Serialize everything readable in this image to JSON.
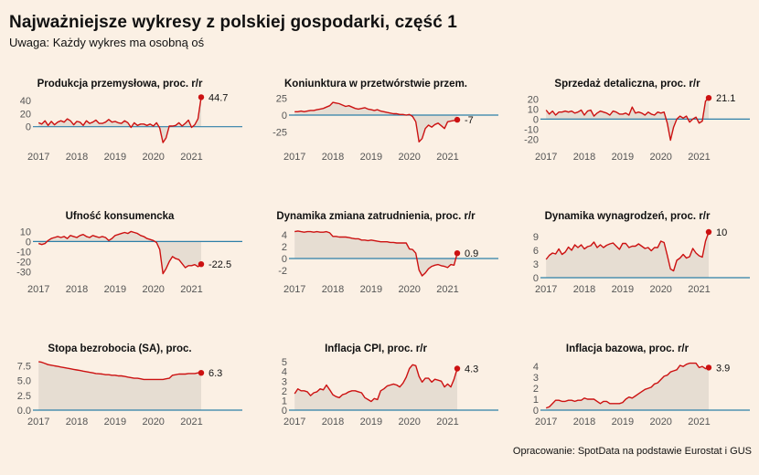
{
  "header": {
    "title": "Najważniejsze wykresy z polskiej gospodarki, część 1",
    "subtitle": "Uwaga: Każdy wykres ma osobną oś"
  },
  "footer": {
    "source": "Opracowanie: SpotData na podstawie Eurostat i GUS"
  },
  "colors": {
    "background": "#fbf0e4",
    "line": "#cc1111",
    "area": "#e6ddd2",
    "zero_line": "#2e7fa8"
  },
  "chart_data": [
    {
      "type": "area",
      "title": "Produkcja przemysłowa, proc. r/r",
      "xlabel": "",
      "ylabel": "",
      "xlim": [
        2016.9,
        2021.25
      ],
      "ylim": [
        -28,
        48
      ],
      "yticks": [
        0,
        20,
        40
      ],
      "ytick_labels": [
        "0",
        "20",
        "40"
      ],
      "xticks": [
        2017,
        2018,
        2019,
        2020,
        2021
      ],
      "grid": false,
      "end_label": "44.7",
      "x": [
        2017.0,
        2017.083,
        2017.167,
        2017.25,
        2017.333,
        2017.417,
        2017.5,
        2017.583,
        2017.667,
        2017.75,
        2017.833,
        2017.917,
        2018.0,
        2018.083,
        2018.167,
        2018.25,
        2018.333,
        2018.417,
        2018.5,
        2018.583,
        2018.667,
        2018.75,
        2018.833,
        2018.917,
        2019.0,
        2019.083,
        2019.167,
        2019.25,
        2019.333,
        2019.417,
        2019.5,
        2019.583,
        2019.667,
        2019.75,
        2019.833,
        2019.917,
        2020.0,
        2020.083,
        2020.167,
        2020.25,
        2020.333,
        2020.417,
        2020.5,
        2020.583,
        2020.667,
        2020.75,
        2020.833,
        2020.917,
        2021.0,
        2021.083,
        2021.167,
        2021.25
      ],
      "values": [
        6,
        4,
        9,
        2,
        8,
        3,
        7,
        9,
        7,
        12,
        9,
        3,
        8,
        7,
        2,
        9,
        5,
        7,
        10,
        5,
        5,
        7,
        11,
        7,
        8,
        6,
        5,
        9,
        6,
        -1,
        6,
        2,
        4,
        4,
        2,
        4,
        1,
        6,
        -2,
        -24,
        -17,
        1,
        1,
        2,
        6,
        1,
        5,
        10,
        -1,
        3,
        12,
        44.7
      ]
    },
    {
      "type": "area",
      "title": "Koniunktura w przetwórstwie przem.",
      "xlabel": "",
      "ylabel": "",
      "xlim": [
        2016.9,
        2021.25
      ],
      "ylim": [
        -45,
        30
      ],
      "yticks": [
        -25,
        0,
        25
      ],
      "ytick_labels": [
        "-25",
        "0",
        "25"
      ],
      "xticks": [
        2017,
        2018,
        2019,
        2020,
        2021
      ],
      "grid": false,
      "end_label": "-7",
      "x": [
        2017.0,
        2017.083,
        2017.167,
        2017.25,
        2017.333,
        2017.417,
        2017.5,
        2017.583,
        2017.667,
        2017.75,
        2017.833,
        2017.917,
        2018.0,
        2018.083,
        2018.167,
        2018.25,
        2018.333,
        2018.417,
        2018.5,
        2018.583,
        2018.667,
        2018.75,
        2018.833,
        2018.917,
        2019.0,
        2019.083,
        2019.167,
        2019.25,
        2019.333,
        2019.417,
        2019.5,
        2019.583,
        2019.667,
        2019.75,
        2019.833,
        2019.917,
        2020.0,
        2020.083,
        2020.167,
        2020.25,
        2020.333,
        2020.417,
        2020.5,
        2020.583,
        2020.667,
        2020.75,
        2020.833,
        2020.917,
        2021.0,
        2021.083,
        2021.167,
        2021.25
      ],
      "values": [
        5,
        5,
        6,
        5,
        6,
        7,
        7,
        8,
        9,
        10,
        12,
        14,
        19,
        18,
        17,
        15,
        13,
        14,
        12,
        10,
        9,
        10,
        11,
        9,
        8,
        7,
        8,
        6,
        5,
        4,
        3,
        2,
        2,
        1,
        1,
        0,
        1,
        -2,
        -10,
        -40,
        -35,
        -20,
        -15,
        -18,
        -14,
        -12,
        -16,
        -20,
        -10,
        -9,
        -8,
        -7
      ]
    },
    {
      "type": "area",
      "title": "Sprzedaż detaliczna, proc. r/r",
      "xlabel": "",
      "ylabel": "",
      "xlim": [
        2016.9,
        2021.25
      ],
      "ylim": [
        -26,
        24
      ],
      "yticks": [
        -20,
        -10,
        0,
        10,
        20
      ],
      "ytick_labels": [
        "-20",
        "-10",
        "0",
        "10",
        "20"
      ],
      "xticks": [
        2017,
        2018,
        2019,
        2020,
        2021
      ],
      "grid": false,
      "end_label": "21.1",
      "x": [
        2017.0,
        2017.083,
        2017.167,
        2017.25,
        2017.333,
        2017.417,
        2017.5,
        2017.583,
        2017.667,
        2017.75,
        2017.833,
        2017.917,
        2018.0,
        2018.083,
        2018.167,
        2018.25,
        2018.333,
        2018.417,
        2018.5,
        2018.583,
        2018.667,
        2018.75,
        2018.833,
        2018.917,
        2019.0,
        2019.083,
        2019.167,
        2019.25,
        2019.333,
        2019.417,
        2019.5,
        2019.583,
        2019.667,
        2019.75,
        2019.833,
        2019.917,
        2020.0,
        2020.083,
        2020.167,
        2020.25,
        2020.333,
        2020.417,
        2020.5,
        2020.583,
        2020.667,
        2020.75,
        2020.833,
        2020.917,
        2021.0,
        2021.083,
        2021.167,
        2021.25
      ],
      "values": [
        9,
        5,
        8,
        4,
        7,
        7,
        8,
        7,
        8,
        6,
        7,
        9,
        4,
        8,
        9,
        3,
        6,
        8,
        7,
        6,
        4,
        8,
        7,
        5,
        5,
        6,
        4,
        12,
        6,
        7,
        6,
        4,
        7,
        5,
        4,
        7,
        6,
        7,
        -4,
        -21,
        -8,
        0,
        3,
        1,
        3,
        -3,
        0,
        2,
        -4,
        -2,
        18,
        21.1
      ]
    },
    {
      "type": "area",
      "title": "Ufność konsumencka",
      "xlabel": "",
      "ylabel": "",
      "xlim": [
        2016.9,
        2021.25
      ],
      "ylim": [
        -36,
        14
      ],
      "yticks": [
        -30,
        -20,
        -10,
        0,
        10
      ],
      "ytick_labels": [
        "-30",
        "-20",
        "-10",
        "0",
        "10"
      ],
      "xticks": [
        2017,
        2018,
        2019,
        2020,
        2021
      ],
      "grid": false,
      "end_label": "-22.5",
      "x": [
        2017.0,
        2017.083,
        2017.167,
        2017.25,
        2017.333,
        2017.417,
        2017.5,
        2017.583,
        2017.667,
        2017.75,
        2017.833,
        2017.917,
        2018.0,
        2018.083,
        2018.167,
        2018.25,
        2018.333,
        2018.417,
        2018.5,
        2018.583,
        2018.667,
        2018.75,
        2018.833,
        2018.917,
        2019.0,
        2019.083,
        2019.167,
        2019.25,
        2019.333,
        2019.417,
        2019.5,
        2019.583,
        2019.667,
        2019.75,
        2019.833,
        2019.917,
        2020.0,
        2020.083,
        2020.167,
        2020.25,
        2020.333,
        2020.417,
        2020.5,
        2020.583,
        2020.667,
        2020.75,
        2020.833,
        2020.917,
        2021.0,
        2021.083,
        2021.167,
        2021.25
      ],
      "values": [
        -2,
        -3,
        -2,
        1,
        3,
        4,
        5,
        4,
        5,
        3,
        6,
        5,
        4,
        6,
        7,
        5,
        4,
        6,
        5,
        4,
        5,
        4,
        1,
        3,
        6,
        7,
        8,
        9,
        8,
        10,
        9,
        8,
        6,
        5,
        3,
        2,
        1,
        -1,
        -8,
        -32,
        -27,
        -20,
        -15,
        -17,
        -18,
        -22,
        -26,
        -24,
        -24,
        -23,
        -25,
        -22.5
      ]
    },
    {
      "type": "area",
      "title": "Dynamika zmiana zatrudnienia, proc. r/r",
      "xlabel": "",
      "ylabel": "",
      "xlim": [
        2016.9,
        2021.25
      ],
      "ylim": [
        -3.2,
        5.2
      ],
      "yticks": [
        -2,
        0,
        2,
        4
      ],
      "ytick_labels": [
        "-2",
        "0",
        "2",
        "4"
      ],
      "xticks": [
        2017,
        2018,
        2019,
        2020,
        2021
      ],
      "grid": false,
      "end_label": "0.9",
      "x": [
        2017.0,
        2017.083,
        2017.167,
        2017.25,
        2017.333,
        2017.417,
        2017.5,
        2017.583,
        2017.667,
        2017.75,
        2017.833,
        2017.917,
        2018.0,
        2018.083,
        2018.167,
        2018.25,
        2018.333,
        2018.417,
        2018.5,
        2018.583,
        2018.667,
        2018.75,
        2018.833,
        2018.917,
        2019.0,
        2019.083,
        2019.167,
        2019.25,
        2019.333,
        2019.417,
        2019.5,
        2019.583,
        2019.667,
        2019.75,
        2019.833,
        2019.917,
        2020.0,
        2020.083,
        2020.167,
        2020.25,
        2020.333,
        2020.417,
        2020.5,
        2020.583,
        2020.667,
        2020.75,
        2020.833,
        2020.917,
        2021.0,
        2021.083,
        2021.167,
        2021.25
      ],
      "values": [
        4.5,
        4.6,
        4.5,
        4.4,
        4.5,
        4.5,
        4.4,
        4.5,
        4.4,
        4.4,
        4.5,
        4.3,
        3.7,
        3.7,
        3.6,
        3.6,
        3.6,
        3.5,
        3.4,
        3.3,
        3.3,
        3.1,
        3.1,
        3.0,
        3.1,
        3.0,
        2.9,
        2.8,
        2.8,
        2.8,
        2.7,
        2.7,
        2.6,
        2.6,
        2.6,
        2.6,
        1.6,
        1.5,
        0.9,
        -1.9,
        -2.9,
        -2.4,
        -1.7,
        -1.3,
        -1.1,
        -1.0,
        -1.2,
        -1.3,
        -1.5,
        -1.0,
        -1.1,
        0.9
      ]
    },
    {
      "type": "area",
      "title": "Dynamika wynagrodzeń, proc. r/r",
      "xlabel": "",
      "ylabel": "",
      "xlim": [
        2016.9,
        2021.25
      ],
      "ylim": [
        0,
        11
      ],
      "yticks": [
        0,
        3,
        6,
        9
      ],
      "ytick_labels": [
        "0",
        "3",
        "6",
        "9"
      ],
      "xticks": [
        2017,
        2018,
        2019,
        2020,
        2021
      ],
      "grid": false,
      "end_label": "10",
      "x": [
        2017.0,
        2017.083,
        2017.167,
        2017.25,
        2017.333,
        2017.417,
        2017.5,
        2017.583,
        2017.667,
        2017.75,
        2017.833,
        2017.917,
        2018.0,
        2018.083,
        2018.167,
        2018.25,
        2018.333,
        2018.417,
        2018.5,
        2018.583,
        2018.667,
        2018.75,
        2018.833,
        2018.917,
        2019.0,
        2019.083,
        2019.167,
        2019.25,
        2019.333,
        2019.417,
        2019.5,
        2019.583,
        2019.667,
        2019.75,
        2019.833,
        2019.917,
        2020.0,
        2020.083,
        2020.167,
        2020.25,
        2020.333,
        2020.417,
        2020.5,
        2020.583,
        2020.667,
        2020.75,
        2020.833,
        2020.917,
        2021.0,
        2021.083,
        2021.167,
        2021.25
      ],
      "values": [
        4.0,
        4.9,
        5.4,
        5.2,
        6.3,
        5.1,
        5.6,
        6.7,
        6.0,
        7.2,
        6.6,
        7.2,
        6.3,
        6.8,
        7.0,
        7.8,
        6.6,
        7.2,
        6.6,
        7.1,
        7.4,
        7.6,
        6.9,
        6.2,
        7.5,
        7.5,
        6.6,
        6.9,
        6.9,
        7.4,
        6.9,
        6.4,
        6.6,
        5.9,
        6.6,
        6.6,
        8.0,
        7.7,
        4.9,
        1.9,
        1.5,
        3.8,
        4.3,
        5.1,
        4.3,
        4.6,
        6.4,
        5.4,
        4.8,
        4.5,
        8.0,
        10.0
      ]
    },
    {
      "type": "area",
      "title": "Stopa bezrobocia (SA), proc.",
      "xlabel": "",
      "ylabel": "",
      "xlim": [
        2016.9,
        2021.25
      ],
      "ylim": [
        0,
        8.5
      ],
      "yticks": [
        0,
        2.5,
        5,
        7.5
      ],
      "ytick_labels": [
        "0.0",
        "2.5",
        "5.0",
        "7.5"
      ],
      "xticks": [
        2017,
        2018,
        2019,
        2020,
        2021
      ],
      "grid": false,
      "end_label": "6.3",
      "x": [
        2017.0,
        2017.083,
        2017.167,
        2017.25,
        2017.333,
        2017.417,
        2017.5,
        2017.583,
        2017.667,
        2017.75,
        2017.833,
        2017.917,
        2018.0,
        2018.083,
        2018.167,
        2018.25,
        2018.333,
        2018.417,
        2018.5,
        2018.583,
        2018.667,
        2018.75,
        2018.833,
        2018.917,
        2019.0,
        2019.083,
        2019.167,
        2019.25,
        2019.333,
        2019.417,
        2019.5,
        2019.583,
        2019.667,
        2019.75,
        2019.833,
        2019.917,
        2020.0,
        2020.083,
        2020.167,
        2020.25,
        2020.333,
        2020.417,
        2020.5,
        2020.583,
        2020.667,
        2020.75,
        2020.833,
        2020.917,
        2021.0,
        2021.083,
        2021.167,
        2021.25
      ],
      "values": [
        8.2,
        8.1,
        7.9,
        7.7,
        7.6,
        7.5,
        7.4,
        7.3,
        7.2,
        7.1,
        7.0,
        6.9,
        6.8,
        6.7,
        6.6,
        6.5,
        6.4,
        6.3,
        6.2,
        6.15,
        6.1,
        6.0,
        6.0,
        5.9,
        5.9,
        5.8,
        5.8,
        5.7,
        5.6,
        5.5,
        5.4,
        5.4,
        5.3,
        5.2,
        5.2,
        5.2,
        5.2,
        5.2,
        5.2,
        5.2,
        5.3,
        5.4,
        5.9,
        6.0,
        6.1,
        6.1,
        6.1,
        6.2,
        6.2,
        6.2,
        6.3,
        6.3
      ]
    },
    {
      "type": "area",
      "title": "Inflacja CPI, proc. r/r",
      "xlabel": "",
      "ylabel": "",
      "xlim": [
        2016.9,
        2021.25
      ],
      "ylim": [
        0,
        5.2
      ],
      "yticks": [
        0,
        1,
        2,
        3,
        4,
        5
      ],
      "ytick_labels": [
        "0",
        "1",
        "2",
        "3",
        "4",
        "5"
      ],
      "xticks": [
        2017,
        2018,
        2019,
        2020,
        2021
      ],
      "grid": false,
      "end_label": "4.3",
      "x": [
        2017.0,
        2017.083,
        2017.167,
        2017.25,
        2017.333,
        2017.417,
        2017.5,
        2017.583,
        2017.667,
        2017.75,
        2017.833,
        2017.917,
        2018.0,
        2018.083,
        2018.167,
        2018.25,
        2018.333,
        2018.417,
        2018.5,
        2018.583,
        2018.667,
        2018.75,
        2018.833,
        2018.917,
        2019.0,
        2019.083,
        2019.167,
        2019.25,
        2019.333,
        2019.417,
        2019.5,
        2019.583,
        2019.667,
        2019.75,
        2019.833,
        2019.917,
        2020.0,
        2020.083,
        2020.167,
        2020.25,
        2020.333,
        2020.417,
        2020.5,
        2020.583,
        2020.667,
        2020.75,
        2020.833,
        2020.917,
        2021.0,
        2021.083,
        2021.167,
        2021.25
      ],
      "values": [
        1.7,
        2.2,
        2.0,
        2.0,
        1.9,
        1.5,
        1.8,
        1.9,
        2.2,
        2.1,
        2.6,
        2.1,
        1.6,
        1.4,
        1.3,
        1.6,
        1.7,
        1.9,
        2.0,
        2.0,
        1.9,
        1.8,
        1.3,
        1.1,
        0.9,
        1.2,
        1.1,
        2.0,
        2.2,
        2.5,
        2.6,
        2.7,
        2.6,
        2.4,
        2.8,
        3.4,
        4.3,
        4.7,
        4.6,
        3.5,
        2.9,
        3.3,
        3.3,
        2.9,
        3.2,
        3.1,
        3.0,
        2.4,
        2.7,
        2.4,
        3.2,
        4.3
      ]
    },
    {
      "type": "area",
      "title": "Inflacja bazowa, proc. r/r",
      "xlabel": "",
      "ylabel": "",
      "xlim": [
        2016.9,
        2021.25
      ],
      "ylim": [
        0,
        4.6
      ],
      "yticks": [
        0,
        1,
        2,
        3,
        4
      ],
      "ytick_labels": [
        "0",
        "1",
        "2",
        "3",
        "4"
      ],
      "xticks": [
        2017,
        2018,
        2019,
        2020,
        2021
      ],
      "grid": false,
      "end_label": "3.9",
      "x": [
        2017.0,
        2017.083,
        2017.167,
        2017.25,
        2017.333,
        2017.417,
        2017.5,
        2017.583,
        2017.667,
        2017.75,
        2017.833,
        2017.917,
        2018.0,
        2018.083,
        2018.167,
        2018.25,
        2018.333,
        2018.417,
        2018.5,
        2018.583,
        2018.667,
        2018.75,
        2018.833,
        2018.917,
        2019.0,
        2019.083,
        2019.167,
        2019.25,
        2019.333,
        2019.417,
        2019.5,
        2019.583,
        2019.667,
        2019.75,
        2019.833,
        2019.917,
        2020.0,
        2020.083,
        2020.167,
        2020.25,
        2020.333,
        2020.417,
        2020.5,
        2020.583,
        2020.667,
        2020.75,
        2020.833,
        2020.917,
        2021.0,
        2021.083,
        2021.167,
        2021.25
      ],
      "values": [
        0.2,
        0.3,
        0.6,
        0.9,
        0.9,
        0.8,
        0.8,
        0.9,
        0.9,
        0.8,
        0.9,
        0.9,
        1.1,
        1.0,
        1.0,
        1.0,
        0.8,
        0.6,
        0.8,
        0.8,
        0.6,
        0.6,
        0.6,
        0.6,
        0.7,
        1.0,
        1.2,
        1.1,
        1.3,
        1.5,
        1.7,
        1.9,
        2.0,
        2.1,
        2.4,
        2.5,
        2.8,
        3.1,
        3.2,
        3.5,
        3.6,
        3.7,
        4.1,
        4.0,
        4.2,
        4.3,
        4.3,
        4.3,
        3.9,
        4.0,
        3.8,
        3.9
      ]
    }
  ]
}
